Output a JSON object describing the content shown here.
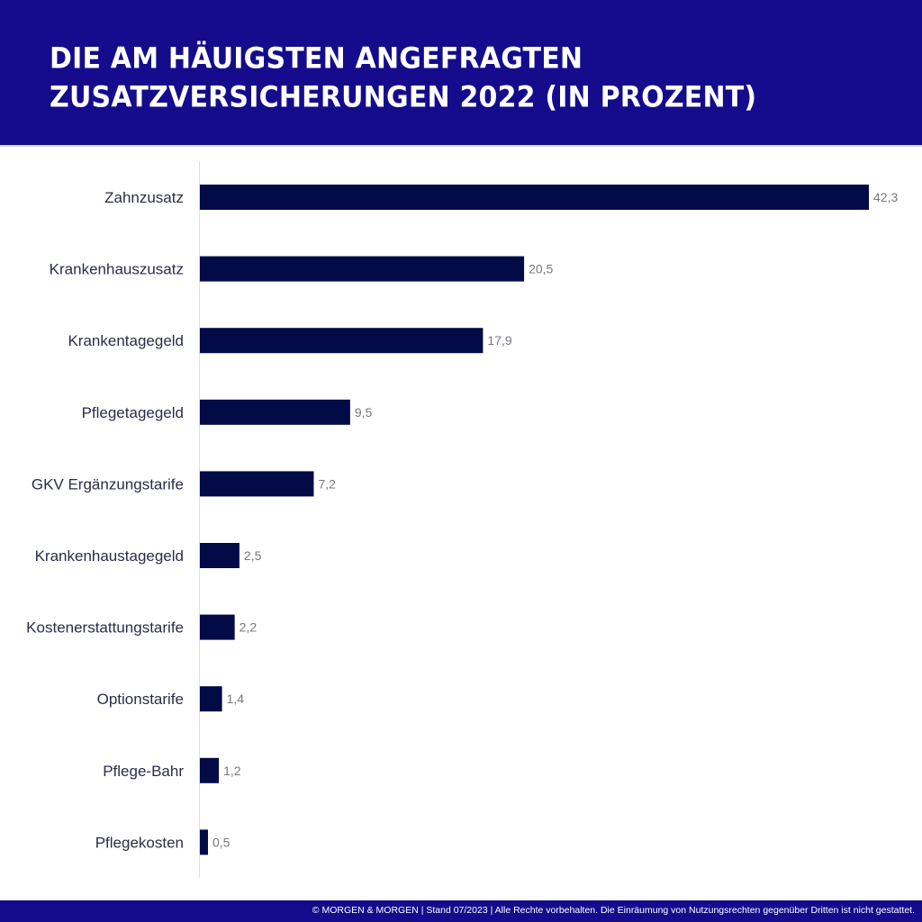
{
  "header": {
    "title": "Die am häuigsten angefragten Zusatzversicherungen 2022 (in Prozent)"
  },
  "footer": {
    "text": "© MORGEN & MORGEN | Stand 07/2023 | Alle Rechte vorbehalten. Die Einräumung von Nutzungsrechten gegenüber Dritten ist nicht gestattet."
  },
  "colors": {
    "header_bg": "#140c8c",
    "bar": "#020b45",
    "axis": "#dcdde6"
  },
  "chart_data": {
    "type": "bar",
    "orientation": "horizontal",
    "title": "Die am häuigsten angefragten Zusatzversicherungen 2022 (in Prozent)",
    "xlabel": "",
    "ylabel": "",
    "unit": "Prozent",
    "grid": false,
    "legend": "none",
    "xlim": [
      0,
      42.3
    ],
    "categories": [
      "Zahnzusatz",
      "Krankenhauszusatz",
      "Krankentagegeld",
      "Pflegetagegeld",
      "GKV Ergänzungstarife",
      "Krankenhaustagegeld",
      "Kostenerstattungstarife",
      "Optionstarife",
      "Pflege-Bahr",
      "Pflegekosten"
    ],
    "values": [
      42.3,
      20.5,
      17.9,
      9.5,
      7.2,
      2.5,
      2.2,
      1.4,
      1.2,
      0.5
    ],
    "value_labels": [
      "42,3",
      "20,5",
      "17,9",
      "9,5",
      "7,2",
      "2,5",
      "2,2",
      "1,4",
      "1,2",
      "0,5"
    ]
  }
}
